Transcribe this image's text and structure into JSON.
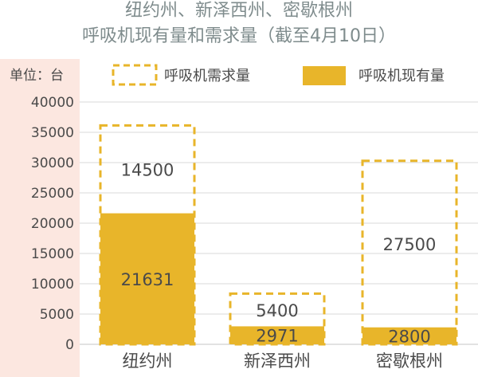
{
  "chart_data": {
    "type": "bar",
    "title_line1": "纽约州、新泽西州、密歇根州",
    "title_line2": "呼吸机现有量和需求量（截至4月10日）",
    "unit_label": "单位：台",
    "categories": [
      "纽约州",
      "新泽西州",
      "密歇根州"
    ],
    "series": [
      {
        "name": "呼吸机现有量",
        "values": [
          21631,
          2971,
          2800
        ],
        "style": "solid"
      },
      {
        "name": "呼吸机需求量",
        "values": [
          14500,
          5400,
          27500
        ],
        "style": "dashed"
      }
    ],
    "stacked": true,
    "y_ticks": [
      "0",
      "5000",
      "10000",
      "15000",
      "20000",
      "25000",
      "30000",
      "35000",
      "40000"
    ],
    "ylim": [
      0,
      40000
    ],
    "grid": true,
    "legend_position": "top",
    "colors": {
      "bar": "#E8B52A",
      "dash": "#E8B52A",
      "title": "#7F8C8D",
      "text": "#4A4A4A",
      "axis_bg": "#FCE7E0",
      "grid": "#D9D9D9"
    }
  }
}
